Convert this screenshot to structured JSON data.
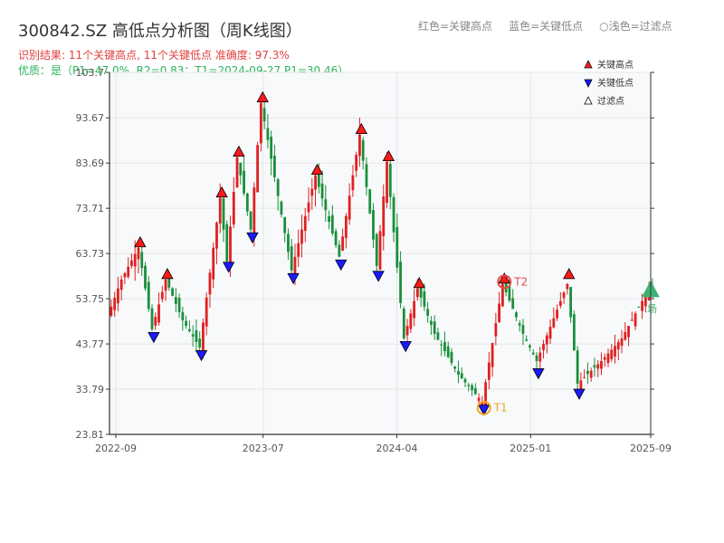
{
  "header": {
    "title": "300842.SZ 高低点分析图（周K线图）",
    "hint_high": "红色=关键高点",
    "hint_low": "蓝色=关键低点",
    "hint_filtered": "○浅色=过滤点",
    "result": "识别结果: 11个关键高点, 11个关键低点   准确度: 97.3%",
    "quality": "优质：是（P1=47.0%, R2=0.83；T1=2024-09-27 P1=30.46）"
  },
  "legend": {
    "high": "关键高点",
    "low": "关键低点",
    "filtered": "过滤点"
  },
  "colors": {
    "up": "#e02020",
    "down": "#1a8f3a",
    "high_marker": "#ff1a1a",
    "low_marker": "#1a1aff",
    "t1": "#f5a623",
    "t2": "#e84a4a",
    "end_marker": "#3cb371",
    "grid": "#e6e6e6",
    "plot_bg": "#f7f9fb"
  },
  "chart_data": {
    "type": "candlestick",
    "x_ticks": [
      "2022-09",
      "2023-07",
      "2024-04",
      "2025-01",
      "2025-09"
    ],
    "y_ticks": [
      23.81,
      33.79,
      43.77,
      53.75,
      63.73,
      73.71,
      83.69,
      93.67,
      103.7
    ],
    "ylim": [
      23.81,
      103.7
    ],
    "x_range": [
      "2022-08-19",
      "2025-09-05"
    ],
    "anchors": [
      [
        "2022-08-19",
        50
      ],
      [
        "2022-09-16",
        58
      ],
      [
        "2022-10-21",
        65
      ],
      [
        "2022-11-18",
        47
      ],
      [
        "2022-12-16",
        58
      ],
      [
        "2023-01-20",
        49
      ],
      [
        "2023-02-24",
        43
      ],
      [
        "2023-04-07",
        76
      ],
      [
        "2023-04-21",
        62
      ],
      [
        "2023-05-12",
        85
      ],
      [
        "2023-06-09",
        69
      ],
      [
        "2023-06-30",
        97
      ],
      [
        "2023-09-01",
        60
      ],
      [
        "2023-10-20",
        81
      ],
      [
        "2023-12-08",
        63
      ],
      [
        "2024-01-19",
        90
      ],
      [
        "2024-02-23",
        61
      ],
      [
        "2024-03-15",
        84
      ],
      [
        "2024-04-19",
        45
      ],
      [
        "2024-05-17",
        56
      ],
      [
        "2024-06-21",
        46
      ],
      [
        "2024-08-09",
        37
      ],
      [
        "2024-09-27",
        31
      ],
      [
        "2024-11-08",
        57
      ],
      [
        "2024-12-20",
        46
      ],
      [
        "2025-01-17",
        40
      ],
      [
        "2025-03-21",
        57
      ],
      [
        "2025-04-11",
        35
      ],
      [
        "2025-05-30",
        40
      ],
      [
        "2025-07-11",
        45
      ],
      [
        "2025-09-05",
        56
      ]
    ],
    "key_highs": [
      [
        "2022-10-21",
        65
      ],
      [
        "2022-12-16",
        58
      ],
      [
        "2023-04-07",
        76
      ],
      [
        "2023-05-12",
        85
      ],
      [
        "2023-06-30",
        97
      ],
      [
        "2023-10-20",
        81
      ],
      [
        "2024-01-19",
        90
      ],
      [
        "2024-03-15",
        84
      ],
      [
        "2024-05-17",
        56
      ],
      [
        "2024-11-08",
        57
      ],
      [
        "2025-03-21",
        58
      ]
    ],
    "key_lows": [
      [
        "2022-11-18",
        46.5
      ],
      [
        "2023-02-24",
        42.5
      ],
      [
        "2023-04-21",
        62
      ],
      [
        "2023-06-09",
        68.5
      ],
      [
        "2023-09-01",
        59.5
      ],
      [
        "2023-12-08",
        62.5
      ],
      [
        "2024-02-23",
        60
      ],
      [
        "2024-04-19",
        44.5
      ],
      [
        "2024-09-27",
        30.5
      ],
      [
        "2025-01-17",
        38.5
      ],
      [
        "2025-04-11",
        34
      ]
    ],
    "t1": {
      "label": "T1",
      "date": "2024-09-27",
      "value": 30.46
    },
    "t2": {
      "label": "T2",
      "date": "2024-11-08",
      "value": 57.5
    },
    "end_marker": {
      "label": "场",
      "date": "2025-09-05",
      "value": 56
    }
  }
}
